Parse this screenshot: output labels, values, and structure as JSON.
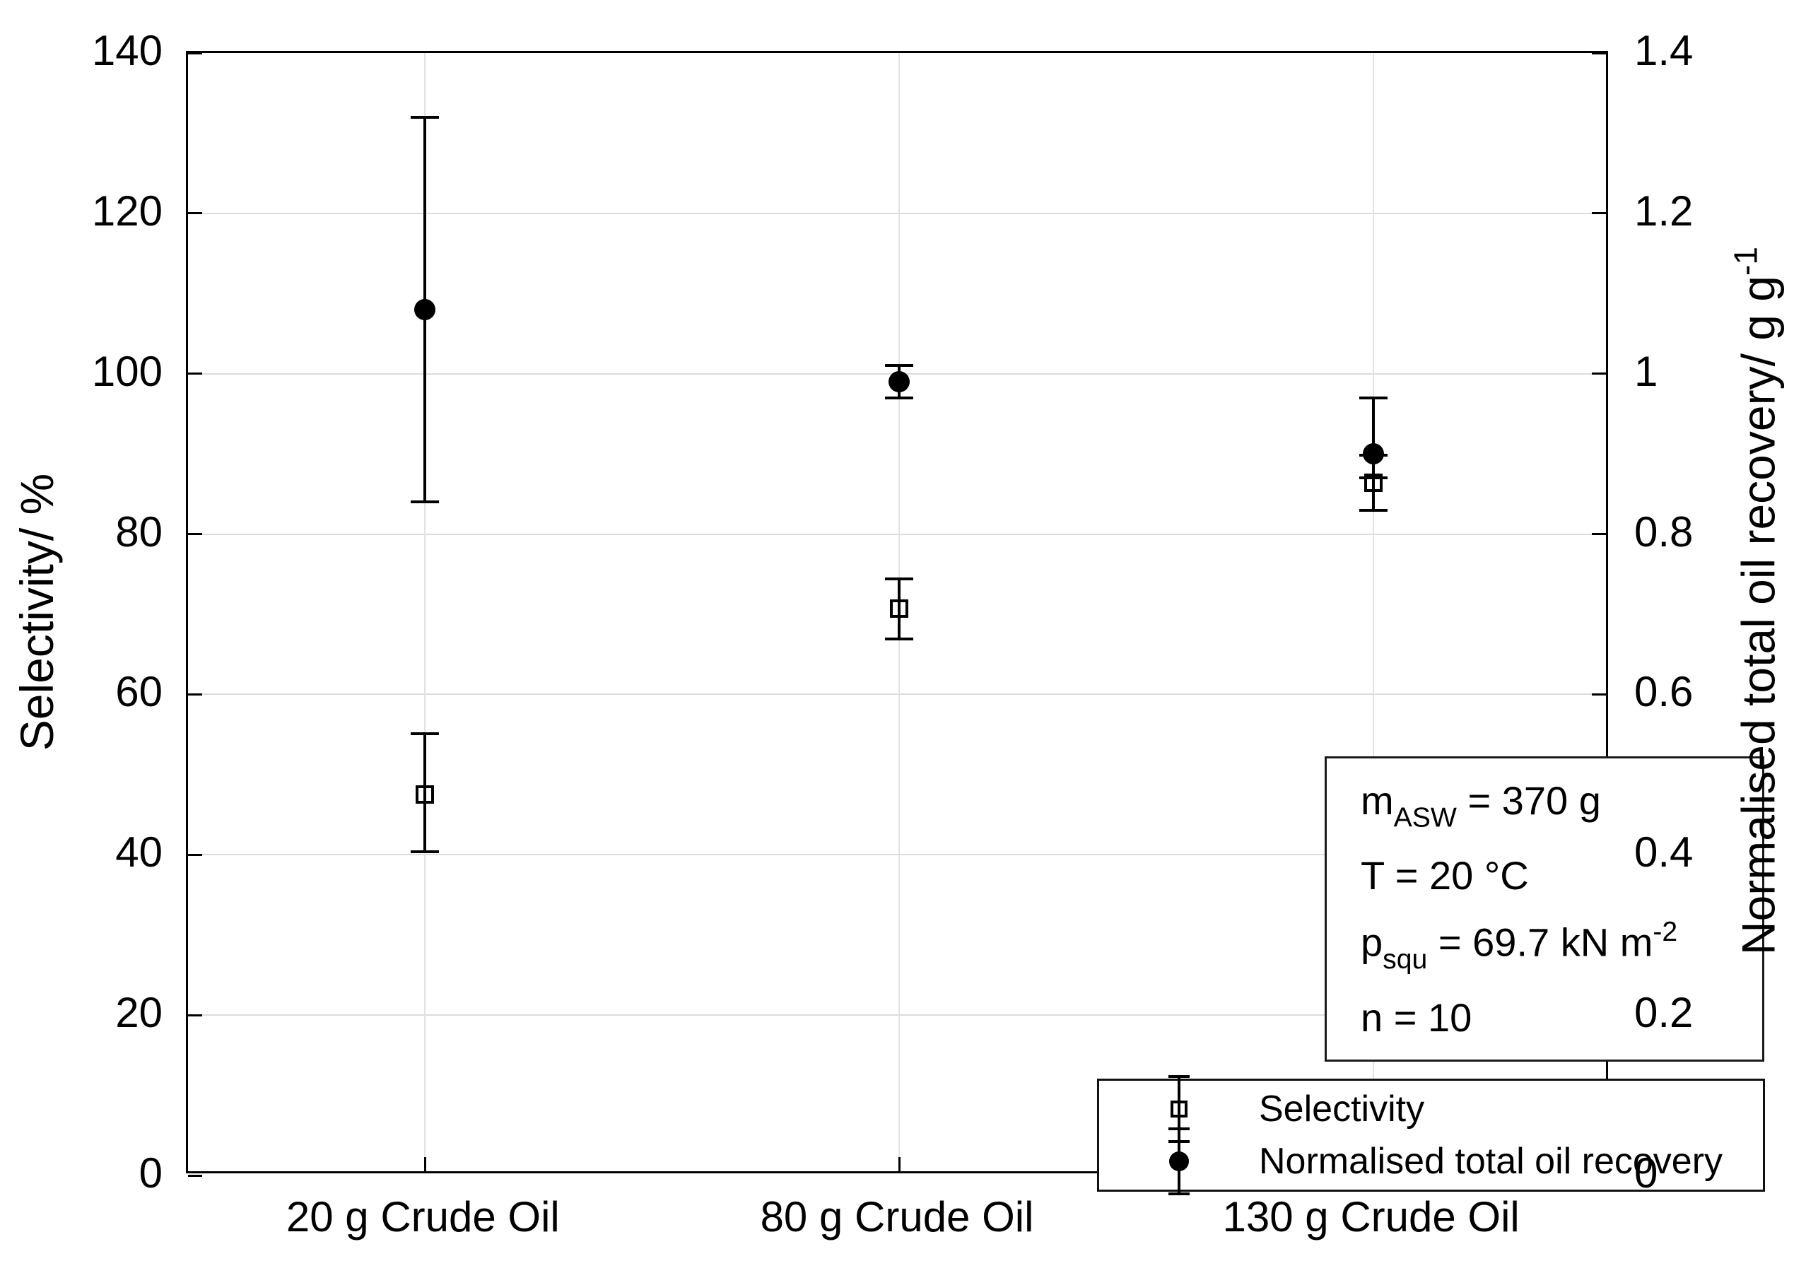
{
  "figure": {
    "background": "#ffffff"
  },
  "chart_data": {
    "type": "scatter",
    "categories": [
      "20 g Crude Oil",
      "80 g Crude Oil",
      "130 g Crude Oil"
    ],
    "series": [
      {
        "name": "Selectivity",
        "axis": "left",
        "marker": "open-square",
        "values": [
          47.5,
          70.7,
          86.4
        ],
        "err_low": [
          40.4,
          66.9,
          83.0
        ],
        "err_high": [
          55.1,
          74.4,
          89.8
        ]
      },
      {
        "name": "Normalised total oil recovery",
        "axis": "right",
        "marker": "filled-circle",
        "values": [
          1.08,
          0.99,
          0.9
        ],
        "err_low": [
          0.84,
          0.97,
          0.87
        ],
        "err_high": [
          1.32,
          1.01,
          0.97
        ]
      }
    ],
    "left_axis": {
      "label": "Selectivity/ %",
      "min": 0,
      "max": 140,
      "ticks": [
        0,
        20,
        40,
        60,
        80,
        100,
        120,
        140
      ]
    },
    "right_axis": {
      "label_parts": [
        {
          "t": "Normalised total oil recovery/ g g"
        },
        {
          "sup": "-1"
        }
      ],
      "min": 0,
      "max": 1.4,
      "ticks": [
        "0",
        "0.2",
        "0.4",
        "0.6",
        "0.8",
        "1",
        "1.2",
        "1.4"
      ]
    },
    "grid": true,
    "legend_position": "inside-bottom-right"
  },
  "annotation": {
    "lines": [
      {
        "parts": [
          {
            "t": "m"
          },
          {
            "sub": "ASW"
          },
          {
            "t": " = 370 g"
          }
        ]
      },
      {
        "parts": [
          {
            "t": "T = 20 °C"
          }
        ]
      },
      {
        "parts": [
          {
            "t": "p"
          },
          {
            "sub": "squ"
          },
          {
            "t": " = 69.7 kN m"
          },
          {
            "sup": "-2"
          }
        ]
      },
      {
        "parts": [
          {
            "t": "n = 10"
          }
        ]
      }
    ]
  },
  "legend": {
    "items": [
      {
        "label": "Selectivity",
        "marker": "open-square"
      },
      {
        "label": "Normalised total oil recovery",
        "marker": "filled-circle"
      }
    ]
  },
  "colors": {
    "axis": "#000000",
    "grid": "#dcdcdc",
    "marker": "#000000",
    "background": "#ffffff"
  }
}
